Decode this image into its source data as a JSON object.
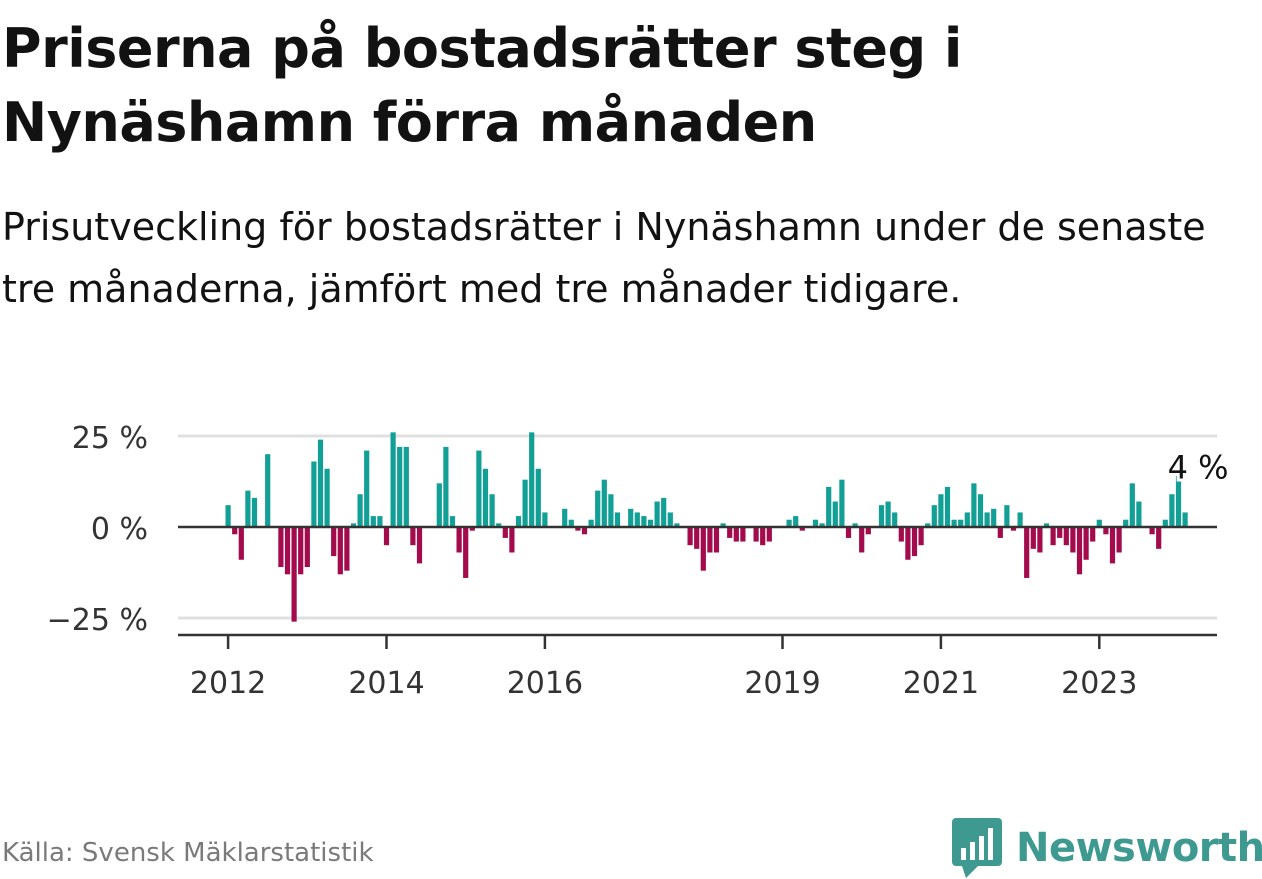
{
  "title": "Priserna på bostadsrätter steg i Nynäshamn förra månaden",
  "subtitle": "Prisutveckling för bostadsrätter i Nynäshamn under de senaste tre månaderna, jämfört med tre månader tidigare.",
  "source": "Källa: Svensk Mäklarstatistik",
  "brand": "Newsworthy",
  "colors": {
    "positive": "#12a096",
    "negative": "#a30b4d",
    "brand": "#3e9a91",
    "grid": "#e0e0e0",
    "axis": "#333333"
  },
  "chart_data": {
    "type": "bar",
    "title": "Priserna på bostadsrätter steg i Nynäshamn förra månaden",
    "xlabel": "",
    "ylabel": "",
    "ylim": [
      -30,
      28
    ],
    "yticks": [
      25,
      0,
      -25
    ],
    "ytick_labels": [
      "25 %",
      "0 %",
      "−25 %"
    ],
    "xticks": [
      {
        "label": "2012",
        "index": 0
      },
      {
        "label": "2014",
        "index": 24
      },
      {
        "label": "2016",
        "index": 48
      },
      {
        "label": "2019",
        "index": 84
      },
      {
        "label": "2021",
        "index": 108
      },
      {
        "label": "2023",
        "index": 132
      }
    ],
    "start": "2012-01",
    "frequency": "monthly",
    "values": [
      6,
      -2,
      -9,
      10,
      8,
      0,
      20,
      0,
      -11,
      -13,
      -26,
      -13,
      -11,
      18,
      24,
      16,
      -8,
      -13,
      -12,
      1,
      9,
      21,
      3,
      3,
      -5,
      26,
      22,
      22,
      -5,
      -10,
      0,
      0,
      12,
      22,
      3,
      -7,
      -14,
      -1,
      21,
      16,
      9,
      1,
      -3,
      -7,
      3,
      13,
      26,
      16,
      4,
      0,
      0,
      5,
      2,
      -1,
      -2,
      2,
      10,
      13,
      9,
      4,
      0,
      5,
      4,
      3,
      2,
      7,
      8,
      4,
      1,
      0,
      -5,
      -6,
      -12,
      -7,
      -7,
      1,
      -3,
      -4,
      -4,
      0,
      -4,
      -5,
      -4,
      0,
      0,
      2,
      3,
      -1,
      0,
      2,
      1,
      11,
      7,
      13,
      -3,
      1,
      -7,
      -2,
      0,
      6,
      7,
      4,
      -4,
      -9,
      -8,
      -5,
      1,
      6,
      9,
      11,
      2,
      2,
      4,
      12,
      9,
      4,
      5,
      -3,
      6,
      -1,
      4,
      -14,
      -6,
      -7,
      1,
      -5,
      -3,
      -5,
      -7,
      -13,
      -9,
      -4,
      2,
      -2,
      -10,
      -7,
      2,
      12,
      7,
      0,
      -2,
      -6,
      2,
      9,
      15,
      4
    ],
    "annotation": {
      "label": "4 %",
      "index": 145
    }
  }
}
